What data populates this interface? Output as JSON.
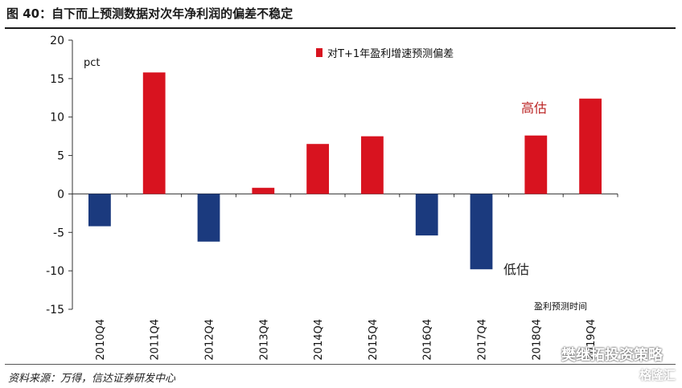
{
  "header": {
    "title": "图 40：自下而上预测数据对次年净利润的偏差不稳定"
  },
  "footer": {
    "source": "资料来源：万得，信达证券研发中心",
    "watermark": "樊继拓投资策略",
    "watermark2": "格隆汇"
  },
  "colors": {
    "positive": "#d8131f",
    "negative": "#1b3a7e",
    "axis": "#333333"
  },
  "chart_data": {
    "type": "bar",
    "categories": [
      "2010Q4",
      "2011Q4",
      "2012Q4",
      "2013Q4",
      "2014Q4",
      "2015Q4",
      "2016Q4",
      "2017Q4",
      "2018Q4",
      "2019Q4"
    ],
    "series": [
      {
        "name": "对T+1年盈利增速预测偏差",
        "values": [
          -4.2,
          15.8,
          -6.2,
          0.8,
          6.5,
          7.5,
          -5.4,
          -9.8,
          7.6,
          12.4
        ]
      }
    ],
    "ylim": [
      -15,
      20
    ],
    "yticks": [
      -15,
      -10,
      -5,
      0,
      5,
      10,
      15,
      20
    ],
    "ylabel": "pct",
    "xlabel": "盈利预测时间",
    "legend_position": "top-right",
    "annotations": {
      "high": "高估",
      "low": "低估"
    }
  }
}
